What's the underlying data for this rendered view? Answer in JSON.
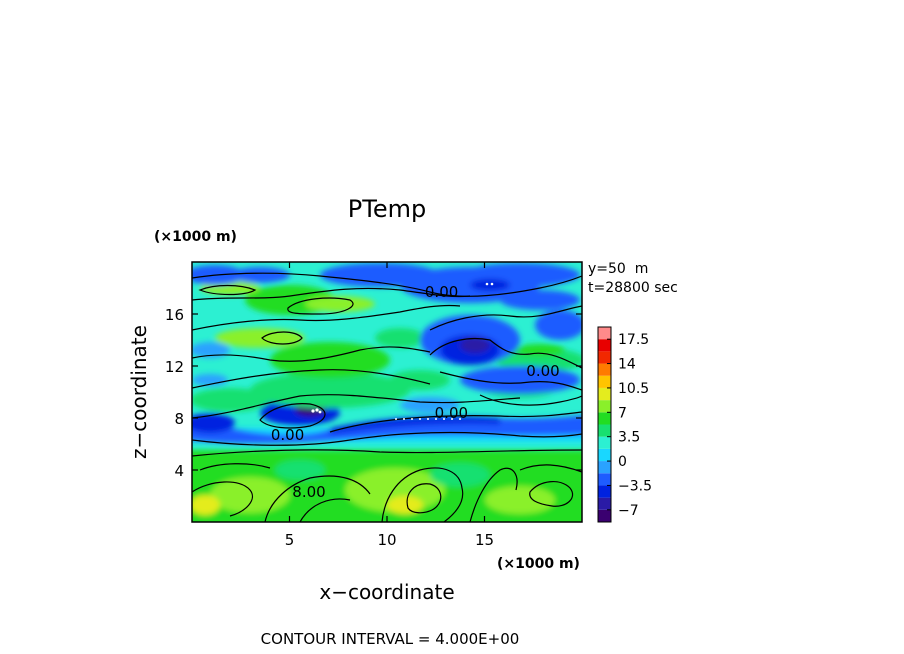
{
  "chart_data": {
    "type": "heatmap",
    "title": "PTemp",
    "xlabel": "x−coordinate",
    "ylabel": "z−coordinate",
    "x_unit": "(×1000 m)",
    "y_unit": "(×1000 m)",
    "xlim": [
      0,
      20
    ],
    "ylim": [
      0,
      20
    ],
    "x_ticks": [
      5,
      10,
      15
    ],
    "y_ticks": [
      4,
      8,
      12,
      16
    ],
    "x_tick_labels": [
      "5",
      "10",
      "15"
    ],
    "y_tick_labels": [
      "4",
      "8",
      "12",
      "16"
    ],
    "info_lines": [
      "y=50  m",
      "t=28800 sec"
    ],
    "contour_interval_text": "CONTOUR INTERVAL = 4.000E+00",
    "contour_labels": [
      {
        "text": "0.00",
        "x": 12.8,
        "z": 17.7
      },
      {
        "text": "0.00",
        "x": 18.0,
        "z": 11.6
      },
      {
        "text": "0.00",
        "x": 13.3,
        "z": 8.4
      },
      {
        "text": "0.00",
        "x": 4.9,
        "z": 6.7
      },
      {
        "text": "8.00",
        "x": 6.0,
        "z": 2.3
      }
    ],
    "colorbar": {
      "min": -8.75,
      "max": 19.25,
      "step": 1.75,
      "tick_values": [
        -7,
        -3.5,
        0,
        3.5,
        7,
        10.5,
        14,
        17.5
      ],
      "tick_labels": [
        "−7",
        "−3.5",
        "0",
        "3.5",
        "7",
        "10.5",
        "14",
        "17.5"
      ],
      "colors": [
        "#3a0070",
        "#2a1aa6",
        "#0022e0",
        "#1e5cff",
        "#2aa2ff",
        "#19d7ff",
        "#2cf0d2",
        "#18e070",
        "#22dd22",
        "#8af02a",
        "#e4ec1e",
        "#ffc400",
        "#ff7a00",
        "#f22800",
        "#e80000",
        "#ff8a8a"
      ]
    }
  }
}
